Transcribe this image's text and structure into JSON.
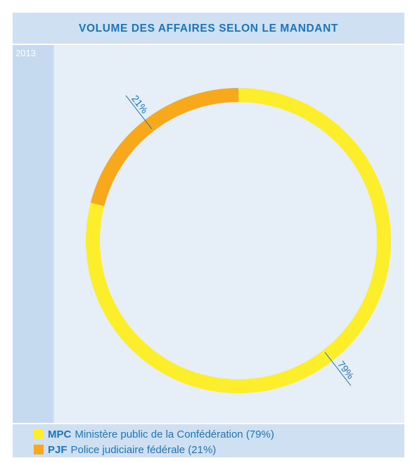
{
  "chart_data": {
    "type": "pie",
    "donut": true,
    "title": "VOLUME DES AFFAIRES SELON LE MANDANT",
    "period": "2013",
    "slices": [
      {
        "abbr": "MPC",
        "label": "Ministère public de la Confédération (79%)",
        "value": 79,
        "data_label": "79%",
        "color": "#fdee2b"
      },
      {
        "abbr": "PJF",
        "label": "Police judiciaire fédérale (21%)",
        "value": 21,
        "data_label": "21%",
        "color": "#f7a81b"
      }
    ],
    "legend_position": "bottom-left"
  },
  "colors": {
    "accent": "#1a75bd",
    "panel": "#cfe0f2",
    "plot_bg": "#e6eef7"
  }
}
